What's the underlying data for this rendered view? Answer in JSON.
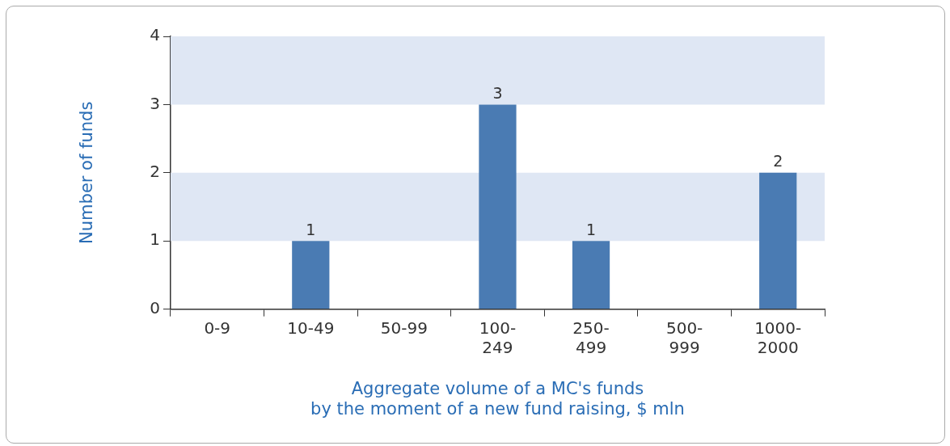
{
  "chart_data": {
    "type": "bar",
    "categories": [
      "0-9",
      "10-49",
      "50-99",
      "100-\n249",
      "250-\n499",
      "500-\n999",
      "1000-\n2000"
    ],
    "values": [
      0,
      1,
      0,
      3,
      1,
      0,
      2
    ],
    "value_labels": [
      null,
      "1",
      null,
      "3",
      "1",
      null,
      "2"
    ],
    "color": "#4a7bb3",
    "xlabel": "Aggregate volume of a MC's funds\nby the moment of a new fund raising, $ mln",
    "ylabel": "Number of funds",
    "ylim": [
      0,
      4
    ],
    "yticks": [
      0,
      1,
      2,
      3,
      4
    ],
    "bands": [
      {
        "axis": "y",
        "from": 1,
        "to": 2,
        "color": "#dfe7f4"
      },
      {
        "axis": "y",
        "from": 3,
        "to": 4,
        "color": "#dfe7f4"
      }
    ],
    "grid": false,
    "legend": false
  }
}
